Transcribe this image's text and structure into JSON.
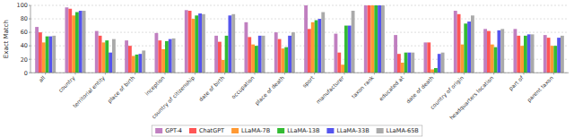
{
  "chart_data": {
    "type": "bar",
    "categories": [
      "all",
      "country",
      "territorial entity",
      "place of birth",
      "inception",
      "country of citizenship",
      "date of birth",
      "occupation",
      "place of death",
      "sport",
      "manufacturer",
      "taxon rank",
      "educated at",
      "date of death",
      "country of origin",
      "headquarters location",
      "part of",
      "parent taxon"
    ],
    "series": [
      {
        "name": "GPT-4",
        "color": "#c07fc0",
        "values": [
          68,
          97,
          62,
          48,
          59,
          93,
          55,
          75,
          60,
          100,
          58,
          100,
          56,
          45,
          92,
          65,
          65,
          56
        ]
      },
      {
        "name": "ChatGPT",
        "color": "#ff5555",
        "values": [
          60,
          95,
          55,
          40,
          48,
          92,
          46,
          53,
          50,
          65,
          30,
          100,
          28,
          45,
          87,
          62,
          55,
          52
        ]
      },
      {
        "name": "LLaMA-7B",
        "color": "#ff9933",
        "values": [
          45,
          85,
          45,
          25,
          35,
          80,
          19,
          42,
          36,
          75,
          12,
          100,
          15,
          5,
          42,
          42,
          40,
          40
        ]
      },
      {
        "name": "LLaMA-13B",
        "color": "#33bb33",
        "values": [
          54,
          90,
          48,
          27,
          47,
          85,
          55,
          40,
          38,
          78,
          70,
          100,
          30,
          7,
          73,
          38,
          55,
          40
        ]
      },
      {
        "name": "LLaMA-33B",
        "color": "#5555ee",
        "values": [
          54,
          92,
          30,
          28,
          50,
          88,
          85,
          55,
          55,
          80,
          70,
          100,
          30,
          28,
          76,
          63,
          57,
          52
        ]
      },
      {
        "name": "LLaMA-65B",
        "color": "#aaaaaa",
        "values": [
          55,
          92,
          50,
          33,
          51,
          87,
          87,
          55,
          60,
          90,
          92,
          100,
          30,
          30,
          85,
          65,
          57,
          55
        ]
      }
    ],
    "y_label": "Exact Match",
    "ylim": [
      0,
      100
    ],
    "yticks": [
      0,
      20,
      40,
      60,
      80,
      100
    ],
    "grid": true,
    "legend": "bottom"
  }
}
